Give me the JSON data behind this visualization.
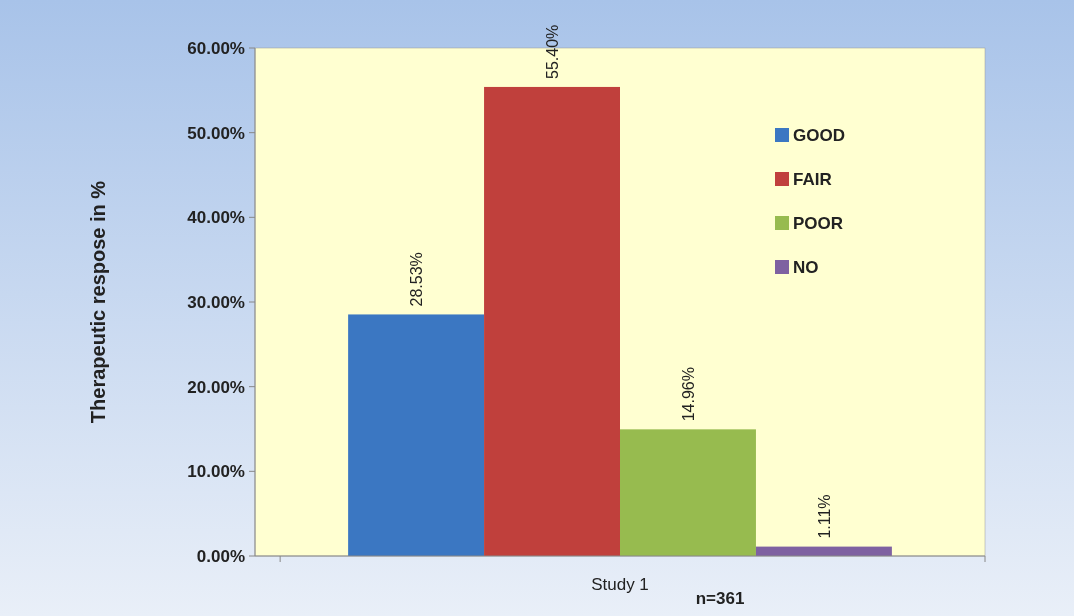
{
  "chart_data": {
    "type": "bar",
    "categories": [
      "Study 1"
    ],
    "ylabel": "Therapeutic respose in %",
    "series": [
      {
        "name": "GOOD",
        "color": "#3b77c2",
        "values": [
          28.53
        ],
        "value_labels": [
          "28.53%"
        ]
      },
      {
        "name": "FAIR",
        "color": "#c0403c",
        "values": [
          55.4
        ],
        "value_labels": [
          "55.40%"
        ]
      },
      {
        "name": "POOR",
        "color": "#97bb4f",
        "values": [
          14.96
        ],
        "value_labels": [
          "14.96%"
        ]
      },
      {
        "name": "NO",
        "color": "#7e61a1",
        "values": [
          1.11
        ],
        "value_labels": [
          "1.11%"
        ]
      }
    ],
    "ylim": [
      0,
      60
    ],
    "yticks": [
      {
        "value": 0,
        "label": "0.00%"
      },
      {
        "value": 10,
        "label": "10.00%"
      },
      {
        "value": 20,
        "label": "20.00%"
      },
      {
        "value": 30,
        "label": "30.00%"
      },
      {
        "value": 40,
        "label": "40.00%"
      },
      {
        "value": 50,
        "label": "50.00%"
      },
      {
        "value": 60,
        "label": "60.00%"
      }
    ],
    "grid": false,
    "legend": "right",
    "annotations": [
      "n=361"
    ]
  }
}
